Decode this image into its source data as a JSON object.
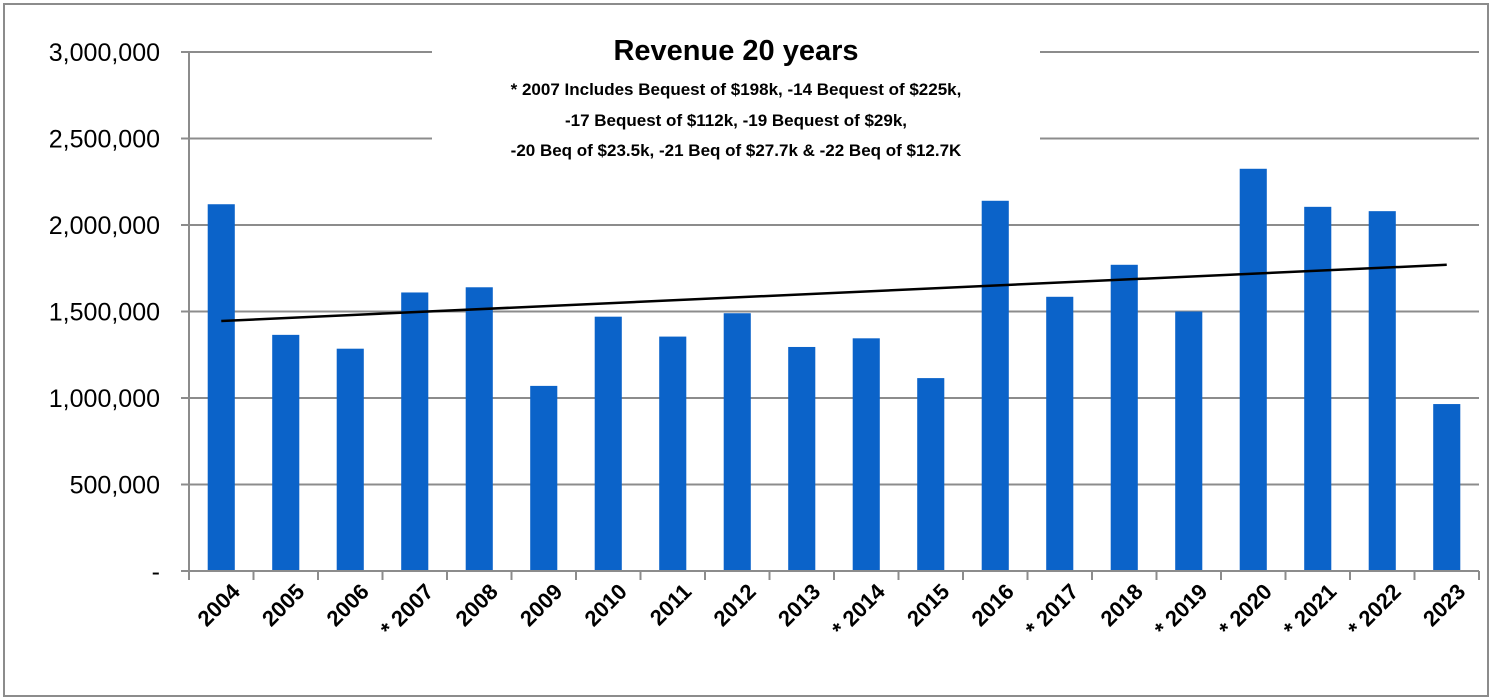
{
  "chart_data": {
    "type": "bar",
    "title": "Revenue 20 years",
    "subtitle_lines": [
      "* 2007 Includes Bequest of $198k, -14 Bequest of $225k,",
      "-17 Bequest of $112k, -19 Bequest of $29k,",
      "-20 Beq of $23.5k, -21 Beq of $27.7k & -22 Beq of $12.7K"
    ],
    "categories": [
      "2004",
      "2005",
      "2006",
      "* 2007",
      "2008",
      "2009",
      "2010",
      "2011",
      "2012",
      "2013",
      "* 2014",
      "2015",
      "2016",
      "* 2017",
      "2018",
      "* 2019",
      "* 2020",
      "* 2021",
      "* 2022",
      "2023"
    ],
    "values": [
      2120000,
      1365000,
      1285000,
      1610000,
      1640000,
      1070000,
      1470000,
      1355000,
      1490000,
      1295000,
      1345000,
      1115000,
      2140000,
      1585000,
      1770000,
      1500000,
      2325000,
      2105000,
      2080000,
      965000
    ],
    "trendline": {
      "type": "linear",
      "start": 1445000,
      "end": 1770000
    },
    "ylim": [
      0,
      3000000
    ],
    "yticks": [
      {
        "value": 0,
        "label": "-"
      },
      {
        "value": 500000,
        "label": "500,000"
      },
      {
        "value": 1000000,
        "label": "1,000,000"
      },
      {
        "value": 1500000,
        "label": "1,500,000"
      },
      {
        "value": 2000000,
        "label": "2,000,000"
      },
      {
        "value": 2500000,
        "label": "2,500,000"
      },
      {
        "value": 3000000,
        "label": "3,000,000"
      }
    ],
    "xlabel": "",
    "ylabel": "",
    "grid": true,
    "legend": "none",
    "colors": {
      "bar": "#0B63C9",
      "grid": "#8c8c8c",
      "trend": "#000000",
      "frame": "#8c8c8c"
    }
  }
}
